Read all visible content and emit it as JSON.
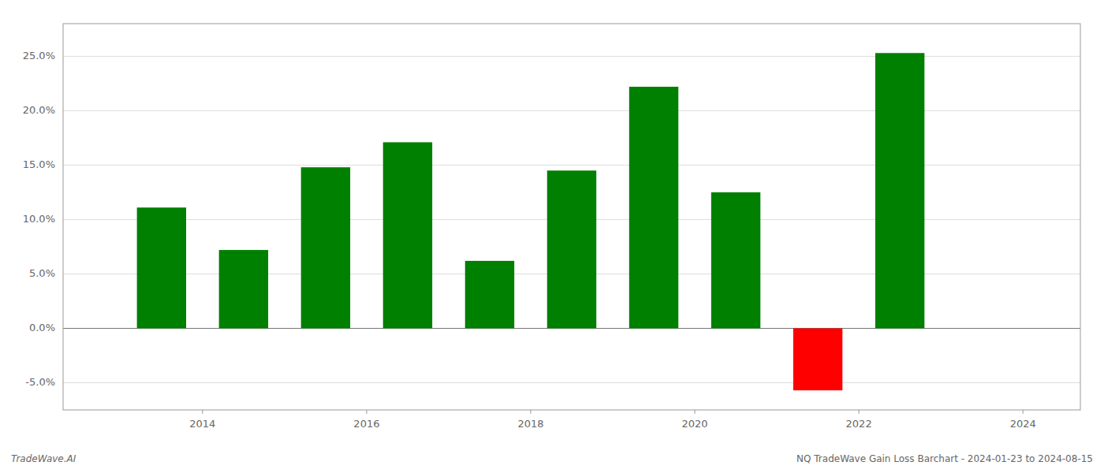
{
  "chart_data": {
    "type": "bar",
    "x": [
      2013.5,
      2014.5,
      2015.5,
      2016.5,
      2017.5,
      2018.5,
      2019.5,
      2020.5,
      2021.5,
      2022.5
    ],
    "values": [
      0.111,
      0.072,
      0.148,
      0.171,
      0.062,
      0.145,
      0.222,
      0.125,
      -0.057,
      0.253
    ],
    "colors": [
      "#008000",
      "#008000",
      "#008000",
      "#008000",
      "#008000",
      "#008000",
      "#008000",
      "#008000",
      "#ff0000",
      "#008000"
    ],
    "xlim": [
      2012.3,
      2024.7
    ],
    "xticks": [
      2014,
      2016,
      2018,
      2020,
      2022,
      2024
    ],
    "ylim": [
      -0.075,
      0.28
    ],
    "yticks": [
      {
        "value": -0.05,
        "label": "-5.0%"
      },
      {
        "value": 0.0,
        "label": "0.0%"
      },
      {
        "value": 0.05,
        "label": "5.0%"
      },
      {
        "value": 0.1,
        "label": "10.0%"
      },
      {
        "value": 0.15,
        "label": "15.0%"
      },
      {
        "value": 0.2,
        "label": "20.0%"
      },
      {
        "value": 0.25,
        "label": "25.0%"
      }
    ],
    "grid": true,
    "annotations": [
      "TradeWave.AI",
      "NQ TradeWave Gain Loss Barchart - 2024-01-23 to 2024-08-15"
    ]
  }
}
